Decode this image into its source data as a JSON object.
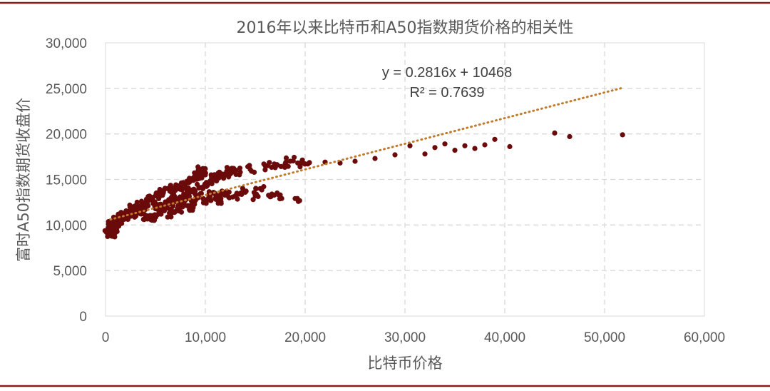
{
  "chart_data": {
    "type": "scatter",
    "title": "2016年以来比特币和A50指数期货价格的相关性",
    "xlabel": "比特币价格",
    "ylabel": "富时A50指数期货收盘价",
    "xlim": [
      0,
      60000
    ],
    "ylim": [
      0,
      30000
    ],
    "x_ticks": [
      "0",
      "10,000",
      "20,000",
      "30,000",
      "40,000",
      "50,000",
      "60,000"
    ],
    "y_ticks": [
      "0",
      "5,000",
      "10,000",
      "15,000",
      "20,000",
      "25,000",
      "30,000"
    ],
    "x_tick_values": [
      0,
      10000,
      20000,
      30000,
      40000,
      50000,
      60000
    ],
    "y_tick_values": [
      0,
      5000,
      10000,
      15000,
      20000,
      25000,
      30000
    ],
    "grid": true,
    "legend": "none",
    "colors": {
      "points": "#6b0a0a",
      "trendline": "#c07a2c",
      "frame_rule": "#8b1a1a",
      "grid": "#d9d9d9"
    },
    "trendline": {
      "type": "linear",
      "slope": 0.2816,
      "intercept": 10468,
      "x_range": [
        500,
        51800
      ]
    },
    "annotations": {
      "equation": "y = 0.2816x + 10468",
      "r_squared": "R² = 0.7639"
    },
    "points": [
      [
        400,
        9000
      ],
      [
        450,
        9200
      ],
      [
        500,
        9400
      ],
      [
        550,
        9100
      ],
      [
        600,
        9600
      ],
      [
        650,
        9800
      ],
      [
        700,
        9300
      ],
      [
        750,
        10000
      ],
      [
        800,
        9700
      ],
      [
        900,
        10200
      ],
      [
        1000,
        10500
      ],
      [
        1100,
        10300
      ],
      [
        1200,
        10600
      ],
      [
        1400,
        10400
      ],
      [
        1600,
        10800
      ],
      [
        1800,
        11000
      ],
      [
        2000,
        10700
      ],
      [
        2200,
        11200
      ],
      [
        2400,
        11500
      ],
      [
        2600,
        11800
      ],
      [
        2800,
        11300
      ],
      [
        3000,
        11900
      ],
      [
        3200,
        11600
      ],
      [
        3500,
        12100
      ],
      [
        3800,
        11700
      ],
      [
        4000,
        12400
      ],
      [
        4200,
        11000
      ],
      [
        4500,
        12800
      ],
      [
        4700,
        10700
      ],
      [
        5000,
        13200
      ],
      [
        5200,
        12000
      ],
      [
        5500,
        11500
      ],
      [
        5800,
        13600
      ],
      [
        6000,
        12200
      ],
      [
        6200,
        14000
      ],
      [
        6400,
        11300
      ],
      [
        6600,
        13000
      ],
      [
        6800,
        12600
      ],
      [
        7000,
        13800
      ],
      [
        7200,
        11800
      ],
      [
        7400,
        14300
      ],
      [
        7600,
        12300
      ],
      [
        7800,
        13100
      ],
      [
        8000,
        14500
      ],
      [
        8200,
        12900
      ],
      [
        8400,
        11700
      ],
      [
        8600,
        13700
      ],
      [
        8800,
        14900
      ],
      [
        9000,
        12700
      ],
      [
        9200,
        15300
      ],
      [
        9400,
        13300
      ],
      [
        9600,
        16000
      ],
      [
        9800,
        14200
      ],
      [
        10000,
        15600
      ],
      [
        10200,
        12800
      ],
      [
        10500,
        14800
      ],
      [
        10800,
        13500
      ],
      [
        11000,
        15200
      ],
      [
        11200,
        12800
      ],
      [
        11500,
        15700
      ],
      [
        12000,
        13400
      ],
      [
        12200,
        15500
      ],
      [
        12500,
        16000
      ],
      [
        13000,
        13200
      ],
      [
        13500,
        15800
      ],
      [
        14000,
        13600
      ],
      [
        14500,
        16100
      ],
      [
        15000,
        13200
      ],
      [
        15500,
        14000
      ],
      [
        16000,
        16500
      ],
      [
        16500,
        13100
      ],
      [
        17000,
        16300
      ],
      [
        17500,
        13300
      ],
      [
        18000,
        16700
      ],
      [
        18500,
        17000
      ],
      [
        19000,
        12900
      ],
      [
        19500,
        16800
      ],
      [
        20000,
        16700
      ],
      [
        22000,
        16900
      ],
      [
        23500,
        16800
      ],
      [
        25000,
        17000
      ],
      [
        27000,
        17300
      ],
      [
        29000,
        17700
      ],
      [
        30500,
        18700
      ],
      [
        32000,
        17800
      ],
      [
        33000,
        18500
      ],
      [
        34000,
        18900
      ],
      [
        35000,
        18200
      ],
      [
        36000,
        18700
      ],
      [
        37000,
        18400
      ],
      [
        38000,
        18800
      ],
      [
        39000,
        19400
      ],
      [
        40500,
        18600
      ],
      [
        45000,
        20100
      ],
      [
        46500,
        19700
      ],
      [
        51800,
        19900
      ]
    ]
  }
}
